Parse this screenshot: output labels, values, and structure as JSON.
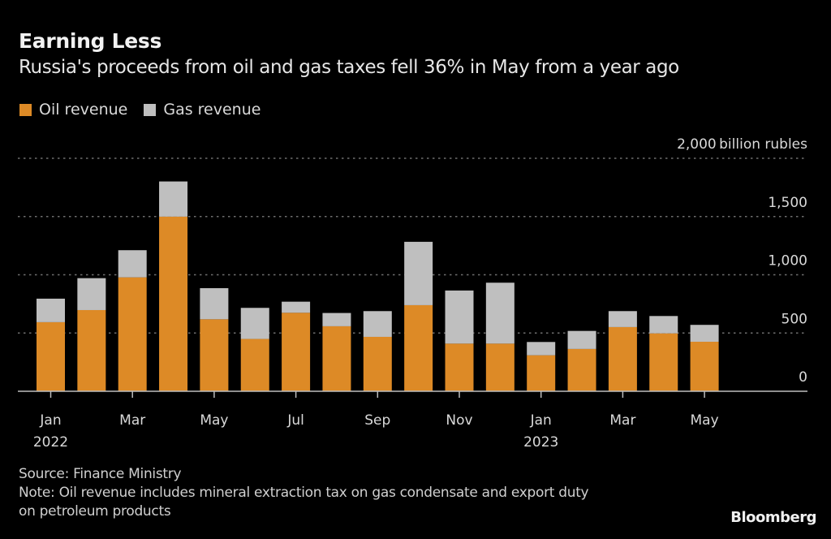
{
  "header": {
    "title": "Earning Less",
    "subtitle": "Russia's proceeds from oil and gas taxes fell 36% in May from a year ago"
  },
  "legend": [
    {
      "label": "Oil revenue",
      "color": "#dd8a26"
    },
    {
      "label": "Gas revenue",
      "color": "#bfbfbf"
    }
  ],
  "footer": {
    "source": "Source: Finance Ministry",
    "note_line1": "Note: Oil revenue includes mineral extraction tax on gas condensate and export duty",
    "note_line2": "on petroleum products",
    "brand": "Bloomberg"
  },
  "chart_data": {
    "type": "bar",
    "stacked": true,
    "title": "Earning Less",
    "subtitle": "Russia's proceeds from oil and gas taxes fell 36% in May from a year ago",
    "unit_label": "billion rubles",
    "ylim": [
      0,
      2000
    ],
    "yticks": [
      0,
      500,
      1000,
      1500,
      2000
    ],
    "ytick_labels": [
      "0",
      "500",
      "1,000",
      "1,500",
      "2,000"
    ],
    "grid": true,
    "legend_position": "top-left",
    "categories": [
      "Jan 2022",
      "Feb 2022",
      "Mar 2022",
      "Apr 2022",
      "May 2022",
      "Jun 2022",
      "Jul 2022",
      "Aug 2022",
      "Sep 2022",
      "Oct 2022",
      "Nov 2022",
      "Dec 2022",
      "Jan 2023",
      "Feb 2023",
      "Mar 2023",
      "Apr 2023",
      "May 2023"
    ],
    "xtick_labels": [
      {
        "index": 0,
        "month": "Jan",
        "year": "2022"
      },
      {
        "index": 2,
        "month": "Mar",
        "year": ""
      },
      {
        "index": 4,
        "month": "May",
        "year": ""
      },
      {
        "index": 6,
        "month": "Jul",
        "year": ""
      },
      {
        "index": 8,
        "month": "Sep",
        "year": ""
      },
      {
        "index": 10,
        "month": "Nov",
        "year": ""
      },
      {
        "index": 12,
        "month": "Jan",
        "year": "2023"
      },
      {
        "index": 14,
        "month": "Mar",
        "year": ""
      },
      {
        "index": 16,
        "month": "May",
        "year": ""
      }
    ],
    "series": [
      {
        "name": "Oil revenue",
        "color": "#dd8a26",
        "values": [
          593,
          697,
          978,
          1499,
          618,
          449,
          674,
          558,
          467,
          739,
          409,
          409,
          309,
          363,
          551,
          497,
          425
        ]
      },
      {
        "name": "Gas revenue",
        "color": "#bfbfbf",
        "values": [
          202,
          274,
          233,
          302,
          267,
          267,
          95,
          114,
          221,
          544,
          456,
          523,
          114,
          155,
          137,
          149,
          145
        ]
      }
    ],
    "source": "Finance Ministry"
  }
}
